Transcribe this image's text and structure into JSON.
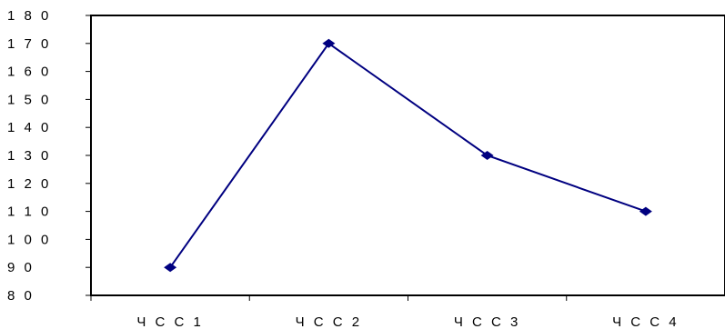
{
  "chart_data": {
    "type": "line",
    "title": "",
    "xlabel": "",
    "ylabel": "",
    "categories": [
      "Ч С С 1",
      "Ч С С 2",
      "Ч С С 3",
      "Ч С С 4"
    ],
    "series": [
      {
        "values": [
          90,
          170,
          130,
          110
        ]
      }
    ],
    "ylim": [
      80,
      180
    ],
    "yticks": [
      80,
      90,
      100,
      110,
      120,
      130,
      140,
      150,
      160,
      170,
      180
    ],
    "ytick_labels": [
      "8 0",
      "9 0",
      "1 0 0",
      "1 1 0",
      "1 2 0",
      "1 3 0",
      "1 4 0",
      "1 5 0",
      "1 6 0",
      "1 7 0",
      "1 8 0"
    ],
    "grid": false,
    "legend": "none",
    "marker": "diamond",
    "colors": {
      "line": "#000080",
      "marker": "#000080",
      "axis": "#000000"
    }
  }
}
